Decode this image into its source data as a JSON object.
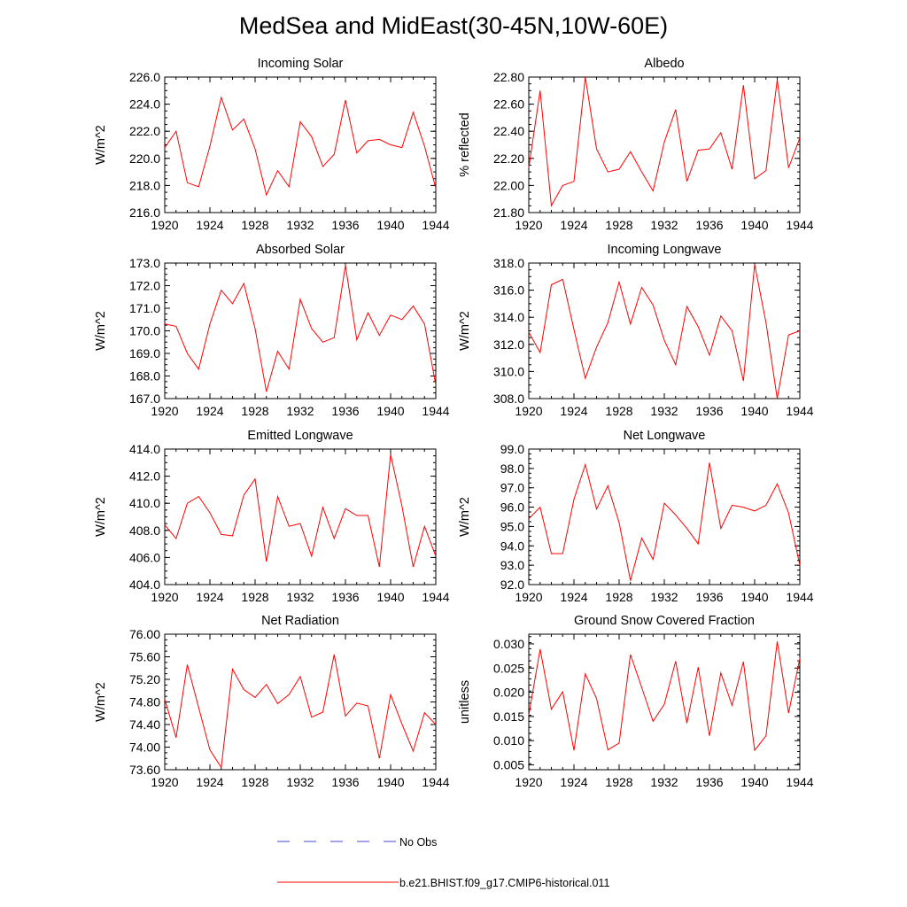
{
  "title": "MedSea and MidEast(30-45N,10W-60E)",
  "colors": {
    "model": "#ff0000",
    "obs": "#4a4ad8"
  },
  "legend": {
    "obs_label": "No Obs",
    "model_label": "b.e21.BHIST.f09_g17.CMIP6-historical.011"
  },
  "chart_data": [
    {
      "type": "line",
      "title": "Incoming Solar",
      "ylabel": "W/m^2",
      "xlim": [
        1920,
        1944
      ],
      "xticks": [
        "1920",
        "1924",
        "1928",
        "1932",
        "1936",
        "1940",
        "1944"
      ],
      "ylim": [
        216,
        226
      ],
      "yticks": [
        "216.0",
        "218.0",
        "220.0",
        "222.0",
        "224.0",
        "226.0"
      ],
      "x": [
        1920,
        1921,
        1922,
        1923,
        1924,
        1925,
        1926,
        1927,
        1928,
        1929,
        1930,
        1931,
        1932,
        1933,
        1934,
        1935,
        1936,
        1937,
        1938,
        1939,
        1940,
        1941,
        1942,
        1943,
        1944
      ],
      "series": [
        {
          "values": [
            220.8,
            222.0,
            218.2,
            217.9,
            220.9,
            224.5,
            222.1,
            222.9,
            220.7,
            217.3,
            219.1,
            217.9,
            222.7,
            221.6,
            219.4,
            220.3,
            224.3,
            220.4,
            221.3,
            221.4,
            221.0,
            220.8,
            223.4,
            220.9,
            217.8
          ]
        }
      ]
    },
    {
      "type": "line",
      "title": "Albedo",
      "ylabel": "% reflected",
      "xlim": [
        1920,
        1944
      ],
      "xticks": [
        "1920",
        "1924",
        "1928",
        "1932",
        "1936",
        "1940",
        "1944"
      ],
      "ylim": [
        21.8,
        22.8
      ],
      "yticks": [
        "21.80",
        "22.00",
        "22.20",
        "22.40",
        "22.60",
        "22.80"
      ],
      "x": [
        1920,
        1921,
        1922,
        1923,
        1924,
        1925,
        1926,
        1927,
        1928,
        1929,
        1930,
        1931,
        1932,
        1933,
        1934,
        1935,
        1936,
        1937,
        1938,
        1939,
        1940,
        1941,
        1942,
        1943,
        1944
      ],
      "series": [
        {
          "values": [
            22.13,
            22.7,
            21.85,
            22.0,
            22.03,
            22.8,
            22.27,
            22.1,
            22.12,
            22.25,
            22.1,
            21.96,
            22.32,
            22.56,
            22.03,
            22.26,
            22.27,
            22.39,
            22.12,
            22.74,
            22.05,
            22.11,
            22.78,
            22.13,
            22.35
          ]
        }
      ]
    },
    {
      "type": "line",
      "title": "Absorbed Solar",
      "ylabel": "W/m^2",
      "xlim": [
        1920,
        1944
      ],
      "xticks": [
        "1920",
        "1924",
        "1928",
        "1932",
        "1936",
        "1940",
        "1944"
      ],
      "ylim": [
        167,
        173
      ],
      "yticks": [
        "167.0",
        "168.0",
        "169.0",
        "170.0",
        "171.0",
        "172.0",
        "173.0"
      ],
      "x": [
        1920,
        1921,
        1922,
        1923,
        1924,
        1925,
        1926,
        1927,
        1928,
        1929,
        1930,
        1931,
        1932,
        1933,
        1934,
        1935,
        1936,
        1937,
        1938,
        1939,
        1940,
        1941,
        1942,
        1943,
        1944
      ],
      "series": [
        {
          "values": [
            170.3,
            170.2,
            169.0,
            168.3,
            170.3,
            171.8,
            171.2,
            172.1,
            170.1,
            167.3,
            169.1,
            168.3,
            171.4,
            170.1,
            169.5,
            169.7,
            172.9,
            169.6,
            170.8,
            169.8,
            170.7,
            170.5,
            171.1,
            170.3,
            167.6
          ]
        }
      ]
    },
    {
      "type": "line",
      "title": "Incoming Longwave",
      "ylabel": "W/m^2",
      "xlim": [
        1920,
        1944
      ],
      "xticks": [
        "1920",
        "1924",
        "1928",
        "1932",
        "1936",
        "1940",
        "1944"
      ],
      "ylim": [
        308,
        318
      ],
      "yticks": [
        "308.0",
        "310.0",
        "312.0",
        "314.0",
        "316.0",
        "318.0"
      ],
      "x": [
        1920,
        1921,
        1922,
        1923,
        1924,
        1925,
        1926,
        1927,
        1928,
        1929,
        1930,
        1931,
        1932,
        1933,
        1934,
        1935,
        1936,
        1937,
        1938,
        1939,
        1940,
        1941,
        1942,
        1943,
        1944
      ],
      "series": [
        {
          "values": [
            312.9,
            311.4,
            316.4,
            316.8,
            313.1,
            309.5,
            311.8,
            313.6,
            316.6,
            313.5,
            316.2,
            314.9,
            312.3,
            310.5,
            314.8,
            313.3,
            311.2,
            314.1,
            313.0,
            309.3,
            317.9,
            313.6,
            308.0,
            312.7,
            313.0
          ]
        }
      ]
    },
    {
      "type": "line",
      "title": "Emitted Longwave",
      "ylabel": "W/m^2",
      "xlim": [
        1920,
        1944
      ],
      "xticks": [
        "1920",
        "1924",
        "1928",
        "1932",
        "1936",
        "1940",
        "1944"
      ],
      "ylim": [
        404,
        414
      ],
      "yticks": [
        "404.0",
        "406.0",
        "408.0",
        "410.0",
        "412.0",
        "414.0"
      ],
      "x": [
        1920,
        1921,
        1922,
        1923,
        1924,
        1925,
        1926,
        1927,
        1928,
        1929,
        1930,
        1931,
        1932,
        1933,
        1934,
        1935,
        1936,
        1937,
        1938,
        1939,
        1940,
        1941,
        1942,
        1943,
        1944
      ],
      "series": [
        {
          "values": [
            408.4,
            407.4,
            410.0,
            410.5,
            409.3,
            407.7,
            407.6,
            410.6,
            411.8,
            405.7,
            410.5,
            408.3,
            408.5,
            406.1,
            409.7,
            407.4,
            409.6,
            409.1,
            409.1,
            405.3,
            413.6,
            409.8,
            405.3,
            408.3,
            406.1
          ]
        }
      ]
    },
    {
      "type": "line",
      "title": "Net Longwave",
      "ylabel": "W/m^2",
      "xlim": [
        1920,
        1944
      ],
      "xticks": [
        "1920",
        "1924",
        "1928",
        "1932",
        "1936",
        "1940",
        "1944"
      ],
      "ylim": [
        92,
        99
      ],
      "yticks": [
        "92.0",
        "93.0",
        "94.0",
        "95.0",
        "96.0",
        "97.0",
        "98.0",
        "99.0"
      ],
      "x": [
        1920,
        1921,
        1922,
        1923,
        1924,
        1925,
        1926,
        1927,
        1928,
        1929,
        1930,
        1931,
        1932,
        1933,
        1934,
        1935,
        1936,
        1937,
        1938,
        1939,
        1940,
        1941,
        1942,
        1943,
        1944
      ],
      "series": [
        {
          "values": [
            95.4,
            96.0,
            93.6,
            93.6,
            96.4,
            98.2,
            95.9,
            97.1,
            95.2,
            92.2,
            94.4,
            93.3,
            96.2,
            95.6,
            94.9,
            94.1,
            98.3,
            94.9,
            96.1,
            96.0,
            95.8,
            96.1,
            97.2,
            95.7,
            93.0
          ]
        }
      ]
    },
    {
      "type": "line",
      "title": "Net Radiation",
      "ylabel": "W/m^2",
      "xlim": [
        1920,
        1944
      ],
      "xticks": [
        "1920",
        "1924",
        "1928",
        "1932",
        "1936",
        "1940",
        "1944"
      ],
      "ylim": [
        73.6,
        76.0
      ],
      "yticks": [
        "73.60",
        "74.00",
        "74.40",
        "74.80",
        "75.20",
        "75.60",
        "76.00"
      ],
      "x": [
        1920,
        1921,
        1922,
        1923,
        1924,
        1925,
        1926,
        1927,
        1928,
        1929,
        1930,
        1931,
        1932,
        1933,
        1934,
        1935,
        1936,
        1937,
        1938,
        1939,
        1940,
        1941,
        1942,
        1943,
        1944
      ],
      "series": [
        {
          "values": [
            74.85,
            74.17,
            75.46,
            74.7,
            73.95,
            73.64,
            75.38,
            75.02,
            74.88,
            75.11,
            74.77,
            74.93,
            75.25,
            74.53,
            74.62,
            75.64,
            74.55,
            74.78,
            74.73,
            73.8,
            74.93,
            74.41,
            73.93,
            74.61,
            74.4
          ]
        }
      ]
    },
    {
      "type": "line",
      "title": "Ground Snow Covered Fraction",
      "ylabel": "unitless",
      "xlim": [
        1920,
        1944
      ],
      "xticks": [
        "1920",
        "1924",
        "1928",
        "1932",
        "1936",
        "1940",
        "1944"
      ],
      "ylim": [
        0.004,
        0.032
      ],
      "yticks": [
        "0.005",
        "0.010",
        "0.015",
        "0.020",
        "0.025",
        "0.030"
      ],
      "ytick_values": [
        0.005,
        0.01,
        0.015,
        0.02,
        0.025,
        0.03
      ],
      "x": [
        1920,
        1921,
        1922,
        1923,
        1924,
        1925,
        1926,
        1927,
        1928,
        1929,
        1930,
        1931,
        1932,
        1933,
        1934,
        1935,
        1936,
        1937,
        1938,
        1939,
        1940,
        1941,
        1942,
        1943,
        1944
      ],
      "series": [
        {
          "values": [
            0.0153,
            0.0289,
            0.0165,
            0.0201,
            0.008,
            0.0238,
            0.0187,
            0.0081,
            0.0095,
            0.0278,
            0.021,
            0.014,
            0.0175,
            0.0264,
            0.0136,
            0.0252,
            0.011,
            0.024,
            0.0173,
            0.0263,
            0.008,
            0.011,
            0.0305,
            0.0157,
            0.027
          ]
        }
      ]
    }
  ]
}
